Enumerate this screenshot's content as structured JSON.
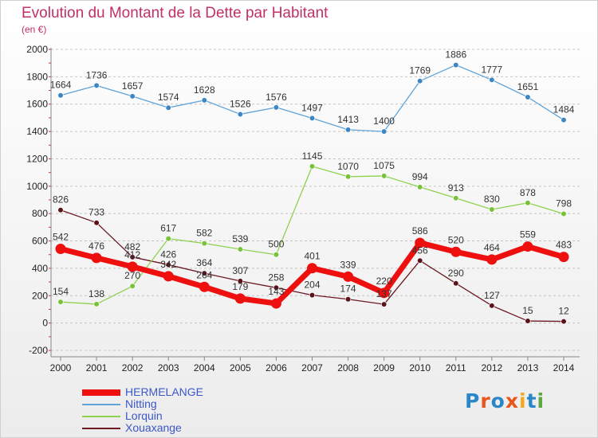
{
  "title": "Evolution du Montant de la Dette par Habitant",
  "subtitle": "(en €)",
  "logo": {
    "text": "Proxiti",
    "colors": [
      "#2b86c9",
      "#e8561e",
      "#2b86c9",
      "#e8561e",
      "#f5a81c",
      "#2b86c9",
      "#5aa83c"
    ]
  },
  "chart_data": {
    "type": "line",
    "title": "Evolution du Montant de la Dette par Habitant",
    "subtitle": "(en €)",
    "xlabel": "",
    "ylabel": "",
    "x": [
      2000,
      2001,
      2002,
      2003,
      2004,
      2005,
      2006,
      2007,
      2008,
      2009,
      2010,
      2011,
      2012,
      2013,
      2014
    ],
    "ylim": [
      -200,
      2000
    ],
    "yticks": [
      -200,
      0,
      200,
      400,
      600,
      800,
      1000,
      1200,
      1400,
      1600,
      1800,
      2000
    ],
    "grid": "horizontal dashed",
    "legend_position": "bottom-left",
    "series": [
      {
        "name": "Xouaxange",
        "color": "#6b1a22",
        "marker": "#5a1219",
        "values": [
          826,
          733,
          482,
          426,
          364,
          307,
          258,
          204,
          174,
          137,
          456,
          290,
          127,
          15,
          12
        ]
      },
      {
        "name": "Lorquin",
        "color": "#8fd14f",
        "marker": "#78c23a",
        "values": [
          154,
          138,
          270,
          617,
          582,
          539,
          500,
          1145,
          1070,
          1075,
          994,
          913,
          830,
          878,
          798
        ]
      },
      {
        "name": "Nitting",
        "color": "#5fa3d8",
        "marker": "#3c86c4",
        "values": [
          1664,
          1736,
          1657,
          1574,
          1628,
          1526,
          1576,
          1497,
          1413,
          1400,
          1769,
          1886,
          1777,
          1651,
          1484
        ]
      },
      {
        "name": "HERMELANGE",
        "color": "#ee0f0f",
        "marker": "#ee0f0f",
        "values": [
          542,
          476,
          412,
          342,
          264,
          179,
          143,
          401,
          339,
          220,
          586,
          520,
          464,
          559,
          483
        ]
      }
    ]
  }
}
